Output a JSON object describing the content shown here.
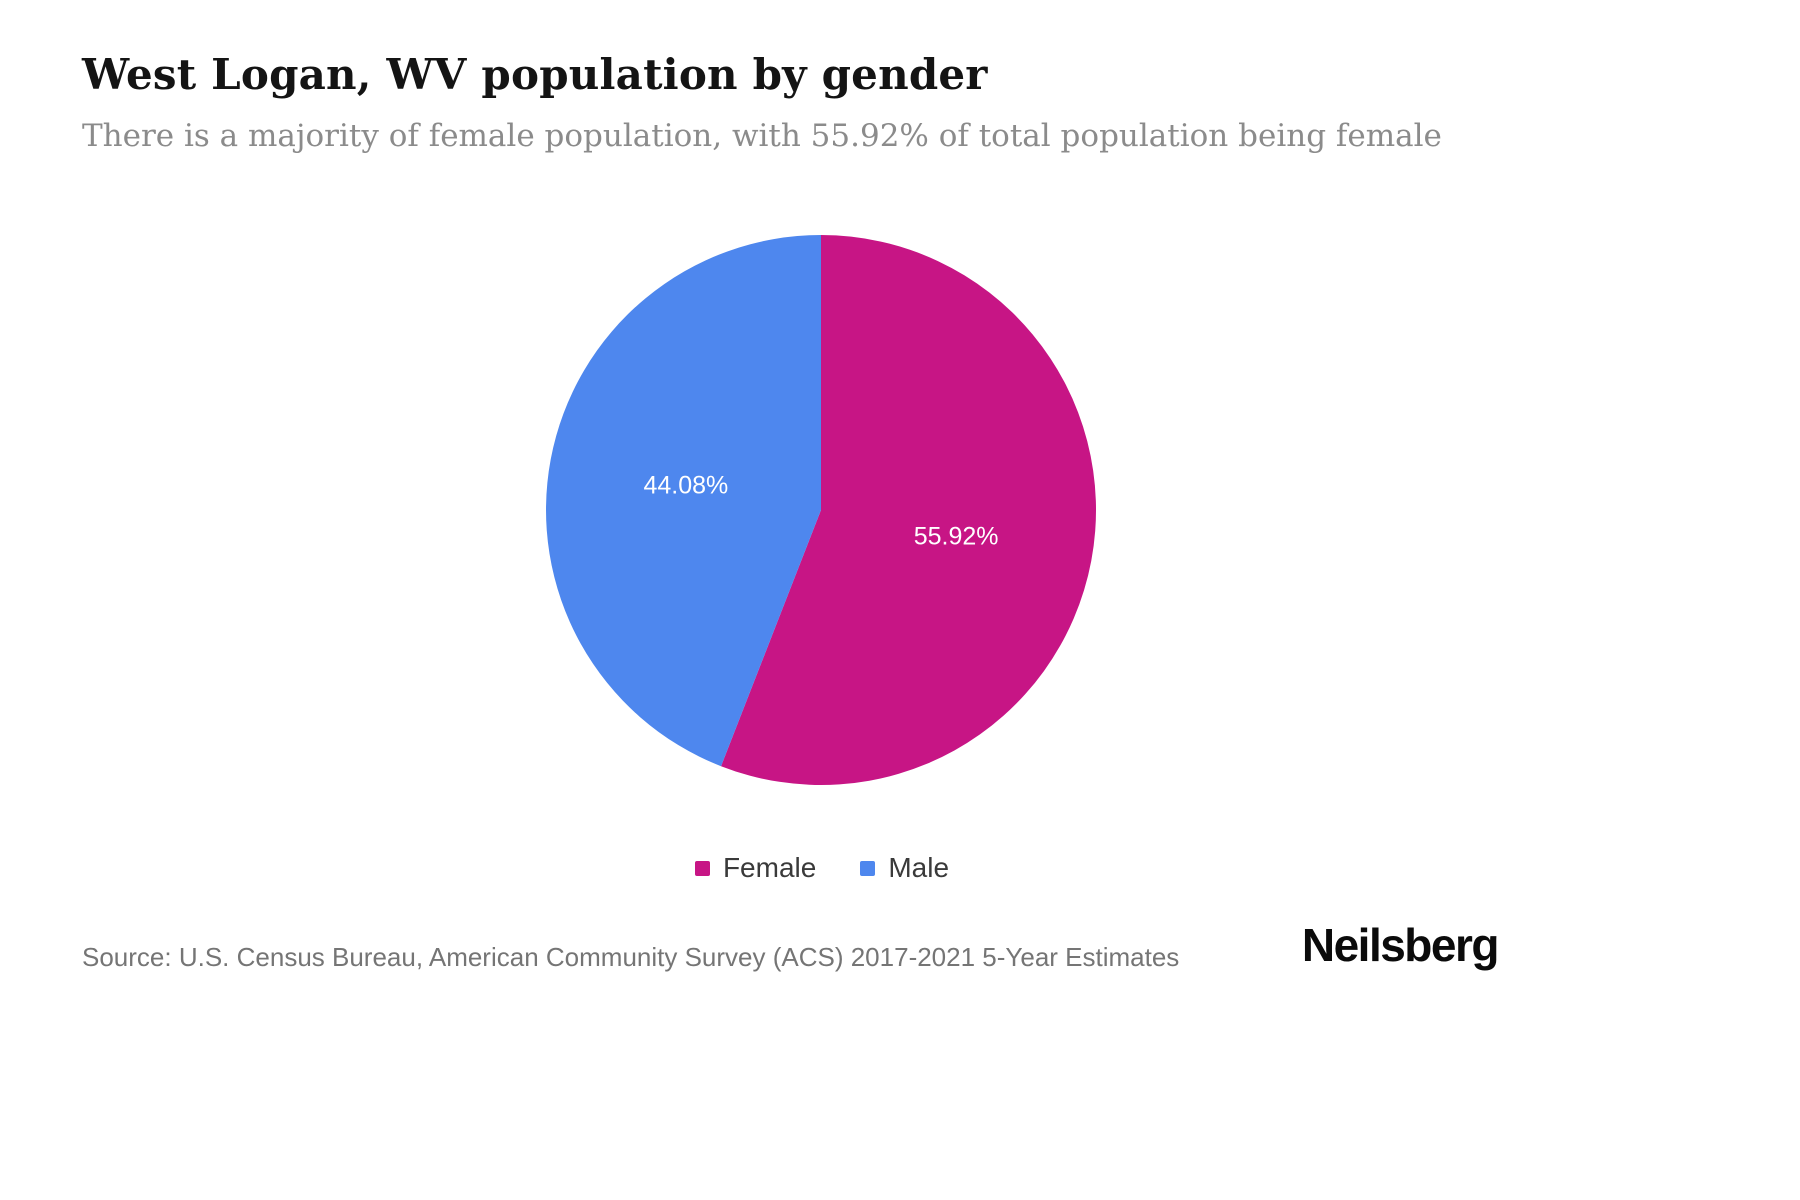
{
  "chart_data": {
    "type": "pie",
    "title": "West Logan, WV population by gender",
    "subtitle": "There is a majority of female population, with 55.92% of total population being female",
    "slices": [
      {
        "label": "Female",
        "value": 55.92,
        "display_label": "55.92%",
        "color": "#C71585"
      },
      {
        "label": "Male",
        "value": 44.08,
        "display_label": "44.08%",
        "color": "#4E87EE"
      }
    ],
    "start_angle_deg": 0,
    "direction": "clockwise",
    "slice_label_color": "#ffffff",
    "legend_position": "bottom",
    "background": "#ffffff"
  },
  "footer": {
    "source": "Source: U.S. Census Bureau, American Community Survey (ACS) 2017-2021 5-Year Estimates",
    "brand": "Neilsberg"
  }
}
